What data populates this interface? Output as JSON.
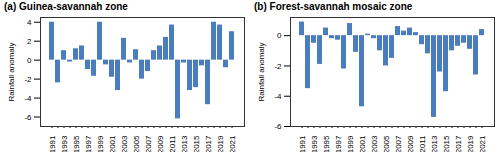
{
  "chart_data": [
    {
      "type": "bar",
      "title": "(a) Guinea-savannah zone",
      "y_label": "Rainfall anomaly",
      "categories": [
        "1991",
        null,
        "1993",
        null,
        "1995",
        null,
        "1997",
        null,
        "1999",
        null,
        "2001",
        null,
        "2003",
        null,
        "2005",
        null,
        "2007",
        null,
        "2009",
        null,
        "2011",
        null,
        "2013",
        null,
        "2015",
        null,
        "2017",
        null,
        "2019",
        null,
        "2021"
      ],
      "values": [
        4.0,
        -2.4,
        1.0,
        -0.2,
        1.2,
        1.5,
        -1.0,
        -1.7,
        4.0,
        -0.5,
        -1.8,
        -3.2,
        2.3,
        -0.3,
        1.1,
        -2.0,
        -1.2,
        1.0,
        1.5,
        2.4,
        3.7,
        -6.2,
        -0.3,
        -3.2,
        -2.9,
        -0.6,
        -4.7,
        4.0,
        3.7,
        -0.8,
        3.0
      ],
      "color": "#4a7cc0",
      "ylim": [
        -7,
        4.5
      ],
      "yticks": [
        -6,
        -4,
        -2,
        0,
        2,
        4
      ],
      "grid": false
    },
    {
      "type": "bar",
      "title": "(b) Forest-savannah mosaic zone",
      "y_label": "Rainfall anomaly",
      "categories": [
        "1991",
        null,
        "1993",
        null,
        "1995",
        null,
        "1997",
        null,
        "1999",
        null,
        "2001",
        null,
        "2003",
        null,
        "2005",
        null,
        "2007",
        null,
        "2009",
        null,
        "2011",
        null,
        "2013",
        null,
        "2015",
        null,
        "2017",
        null,
        "2019",
        null,
        "2021"
      ],
      "values": [
        0.9,
        -3.5,
        -0.5,
        -1.9,
        0.5,
        -0.2,
        -0.3,
        -2.2,
        0.8,
        -1.1,
        -4.7,
        0.1,
        -0.2,
        -1.0,
        -2.0,
        -1.5,
        0.6,
        0.3,
        0.5,
        0.2,
        -0.6,
        -1.2,
        -5.4,
        -2.4,
        -3.7,
        -1.0,
        -0.7,
        -0.5,
        -0.9,
        -2.6,
        0.4
      ],
      "color": "#4a7cc0",
      "ylim": [
        -6,
        1.2
      ],
      "yticks": [
        -6,
        -4,
        -2,
        0
      ],
      "grid": false
    }
  ]
}
